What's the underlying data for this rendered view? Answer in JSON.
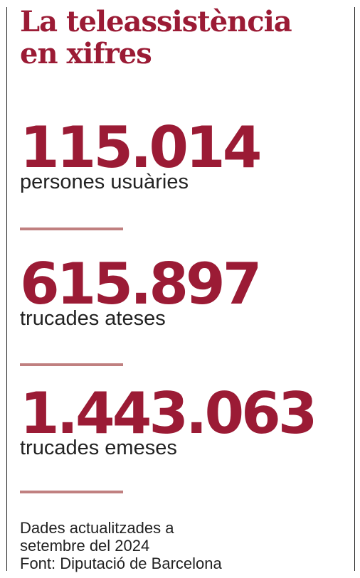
{
  "title": {
    "line1": "La teleassistència",
    "line2": "en xifres"
  },
  "stats": [
    {
      "value": "115.014",
      "label": "persones usuàries"
    },
    {
      "value": "615.897",
      "label": "trucades ateses"
    },
    {
      "value": "1.443.063",
      "label": "trucades emeses"
    }
  ],
  "footnote": {
    "line1": "Dades actualitzades a",
    "line2": "setembre del 2024",
    "line3": "Font: Diputació de Barcelona"
  },
  "colors": {
    "accent": "#9b1b35",
    "divider": "#c08080",
    "text": "#222222"
  }
}
